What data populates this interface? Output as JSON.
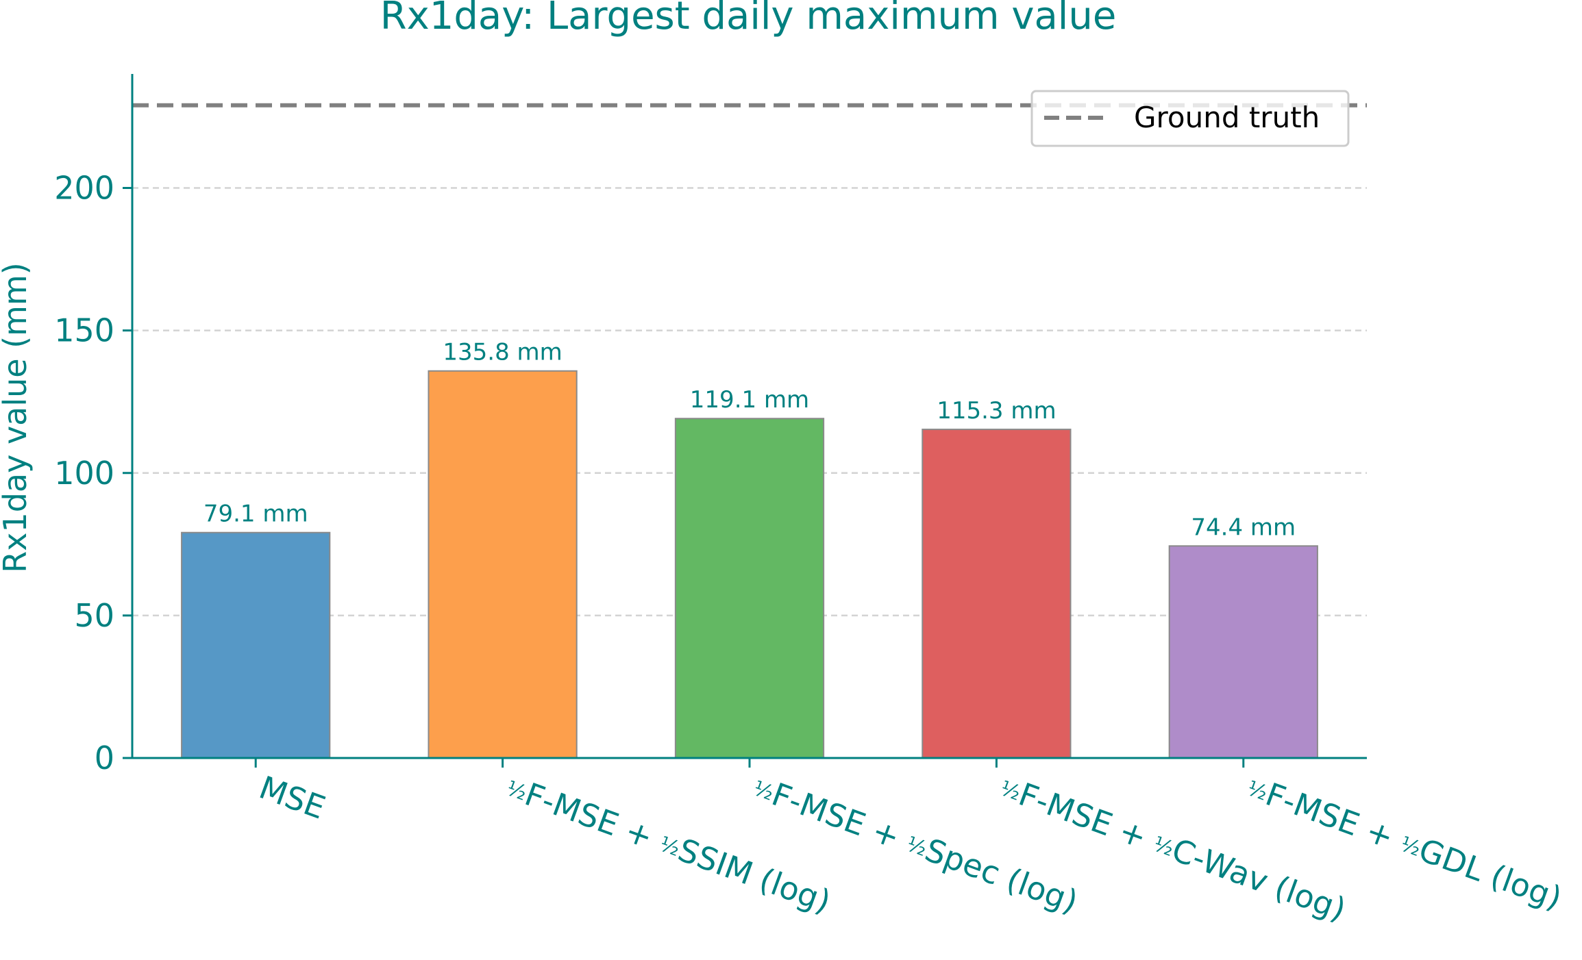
{
  "chart_data": {
    "type": "bar",
    "title": "Rx1day: Largest daily maximum value",
    "xlabel": "",
    "ylabel": "Rx1day value (mm)",
    "ylim": [
      0,
      240
    ],
    "yticks": [
      0,
      50,
      100,
      150,
      200
    ],
    "grid": "y-dashed",
    "categories": [
      "MSE",
      "½F-MSE + ½SSIM (log)",
      "½F-MSE + ½Spec (log)",
      "½F-MSE + ½C-Wav (log)",
      "½F-MSE + ½GDL (log)"
    ],
    "category_parts": [
      {
        "plain": "MSE"
      },
      {
        "first": "F-MSE + ",
        "second": "SSIM (log)"
      },
      {
        "first": "F-MSE + ",
        "second": "Spec (log)"
      },
      {
        "first": "F-MSE + ",
        "second": "C-Wav (log)"
      },
      {
        "first": "F-MSE + ",
        "second": "GDL (log)"
      }
    ],
    "values": [
      79.1,
      135.8,
      119.1,
      115.3,
      74.4
    ],
    "value_labels": [
      "79.1 mm",
      "135.8 mm",
      "119.1 mm",
      "115.3 mm",
      "74.4 mm"
    ],
    "colors": [
      "#5698c6",
      "#fd9f4c",
      "#63b863",
      "#de5f5f",
      "#af8cc9"
    ],
    "reference_line": {
      "name": "Ground truth",
      "value": 229,
      "color": "#808080",
      "style": "dashed"
    },
    "legend": {
      "placement": "top-right",
      "entries": [
        "Ground truth"
      ]
    },
    "text_color": "#008080"
  }
}
